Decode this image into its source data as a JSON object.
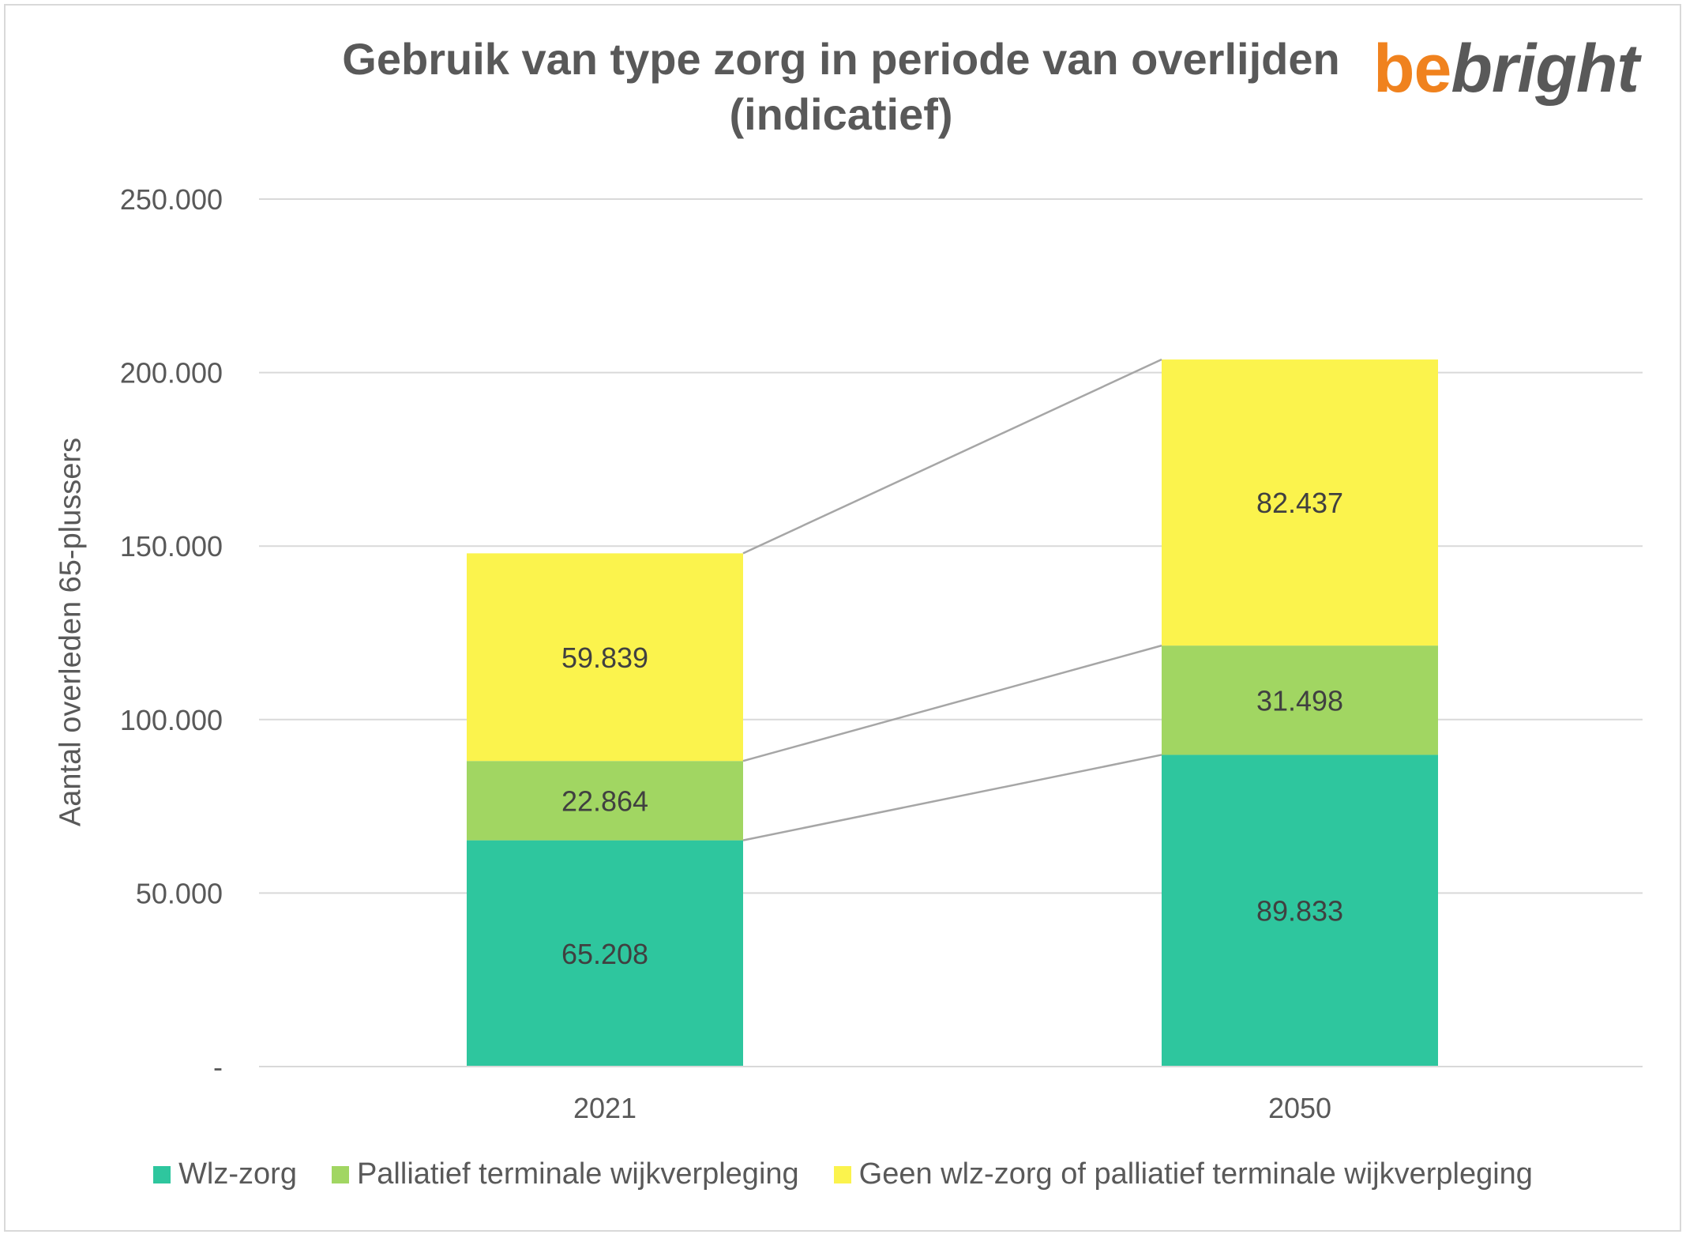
{
  "chart_data": {
    "type": "bar",
    "stacked": true,
    "title": "Gebruik van type zorg in periode van overlijden (indicatief)",
    "ylabel": "Aantal overleden 65-plussers",
    "xlabel": "",
    "categories": [
      "2021",
      "2050"
    ],
    "ylim": [
      0,
      250000
    ],
    "yticks": [
      {
        "value": 0,
        "label": "-"
      },
      {
        "value": 50000,
        "label": "50.000"
      },
      {
        "value": 100000,
        "label": "100.000"
      },
      {
        "value": 150000,
        "label": "150.000"
      },
      {
        "value": 200000,
        "label": "200.000"
      },
      {
        "value": 250000,
        "label": "250.000"
      }
    ],
    "grid": true,
    "legend_position": "bottom",
    "series": [
      {
        "name": "Wlz-zorg",
        "color": "#2ec69e",
        "values": [
          65208,
          89833
        ],
        "labels": [
          "65.208",
          "89.833"
        ]
      },
      {
        "name": "Palliatief terminale wijkverpleging",
        "color": "#a1d662",
        "values": [
          22864,
          31498
        ],
        "labels": [
          "22.864",
          "31.498"
        ]
      },
      {
        "name": "Geen wlz-zorg of palliatief terminale wijkverpleging",
        "color": "#fbf34d",
        "values": [
          59839,
          82437
        ],
        "labels": [
          "59.839",
          "82.437"
        ]
      }
    ]
  },
  "logo": {
    "part1": "be",
    "part2": "bright"
  }
}
